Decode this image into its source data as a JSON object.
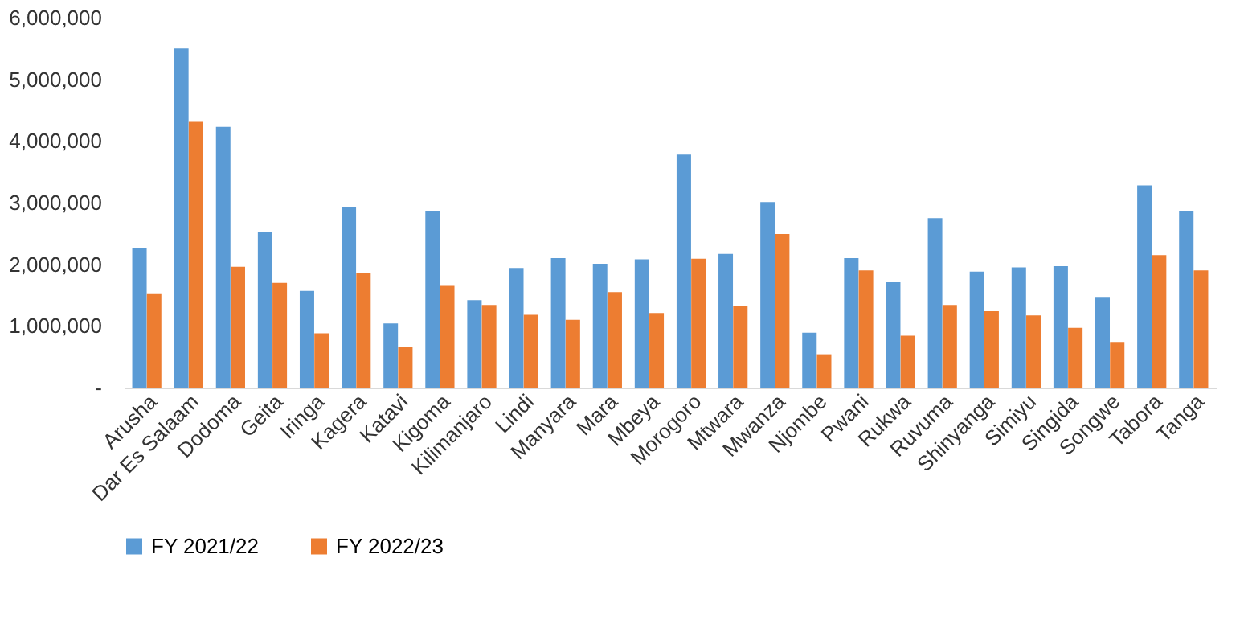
{
  "chart_data": {
    "type": "bar",
    "categories": [
      "Arusha",
      "Dar Es Salaam",
      "Dodoma",
      "Geita",
      "Iringa",
      "Kagera",
      "Katavi",
      "Kigoma",
      "Kilimanjaro",
      "Lindi",
      "Manyara",
      "Mara",
      "Mbeya",
      "Morogoro",
      "Mtwara",
      "Mwanza",
      "Njombe",
      "Pwani",
      "Rukwa",
      "Ruvuma",
      "Shinyanga",
      "Simiyu",
      "Singida",
      "Songwe",
      "Tabora",
      "Tanga"
    ],
    "series": [
      {
        "name": "FY 2021/22",
        "color": "#5b9bd5",
        "values": [
          2270000,
          5500000,
          4230000,
          2520000,
          1570000,
          2930000,
          1040000,
          2870000,
          1420000,
          1940000,
          2100000,
          2010000,
          2080000,
          3780000,
          2170000,
          3010000,
          890000,
          2100000,
          1710000,
          2750000,
          1880000,
          1950000,
          1970000,
          1470000,
          3280000,
          2860000
        ]
      },
      {
        "name": "FY 2022/23",
        "color": "#ed7d31",
        "values": [
          1530000,
          4310000,
          1960000,
          1700000,
          880000,
          1860000,
          660000,
          1650000,
          1340000,
          1180000,
          1100000,
          1550000,
          1210000,
          2090000,
          1330000,
          2490000,
          540000,
          1900000,
          840000,
          1340000,
          1240000,
          1170000,
          970000,
          740000,
          2150000,
          1900000
        ]
      }
    ],
    "ylim": [
      0,
      6000000
    ],
    "yticks": [
      {
        "value": 0,
        "label": "-"
      },
      {
        "value": 1000000,
        "label": "1,000,000"
      },
      {
        "value": 2000000,
        "label": "2,000,000"
      },
      {
        "value": 3000000,
        "label": "3,000,000"
      },
      {
        "value": 4000000,
        "label": "4,000,000"
      },
      {
        "value": 5000000,
        "label": "5,000,000"
      },
      {
        "value": 6000000,
        "label": "6,000,000"
      }
    ],
    "grid": false,
    "legend": "bottom"
  }
}
